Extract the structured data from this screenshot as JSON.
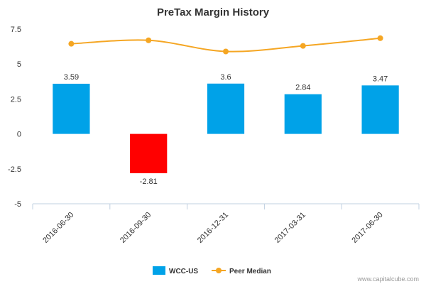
{
  "chart_data": {
    "type": "bar",
    "title": "PreTax Margin History",
    "xlabel": "",
    "ylabel": "",
    "categories": [
      "2016-06-30",
      "2016-09-30",
      "2016-12-31",
      "2017-03-31",
      "2017-06-30"
    ],
    "series": [
      {
        "name": "WCC-US",
        "type": "bar",
        "values": [
          3.59,
          -2.81,
          3.6,
          2.84,
          3.47
        ],
        "data_labels": [
          "3.59",
          "-2.81",
          "3.6",
          "2.84",
          "3.47"
        ],
        "color": "#00a2e8",
        "negative_color": "#ff0000"
      },
      {
        "name": "Peer Median",
        "type": "line",
        "values": [
          6.45,
          6.7,
          5.9,
          6.3,
          6.85
        ],
        "color": "#f5a623"
      }
    ],
    "y_ticks": [
      "7.5",
      "5",
      "2.5",
      "0",
      "-2.5",
      "-5"
    ],
    "y_tick_values": [
      7.5,
      5,
      2.5,
      0,
      -2.5,
      -5
    ],
    "ylim": [
      -5,
      8
    ],
    "grid": false,
    "legend_position": "bottom-center"
  },
  "credit": "www.capitalcube.com"
}
